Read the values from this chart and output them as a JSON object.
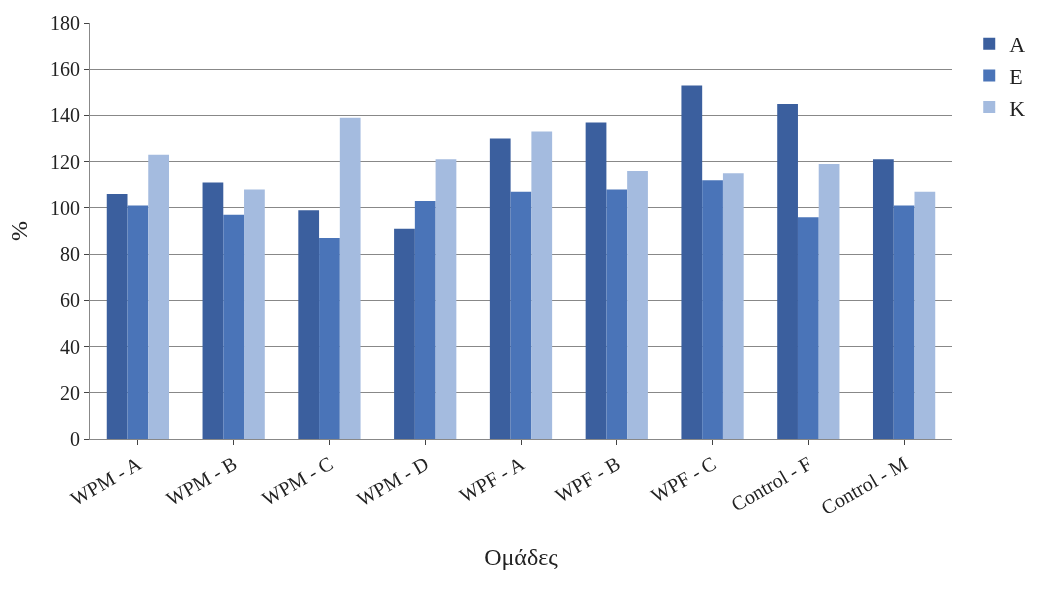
{
  "chart_data": {
    "type": "bar",
    "xlabel": "Ομάδες",
    "ylabel": "%",
    "categories": [
      "WPM - A",
      "WPM - B",
      "WPM - C",
      "WPM - D",
      "WPF - A",
      "WPF - B",
      "WPF - C",
      "Control - F",
      "Control - M"
    ],
    "series": [
      {
        "name": "A",
        "color": "#3b5f9e",
        "values": [
          106,
          111,
          99,
          91,
          130,
          137,
          153,
          145,
          121
        ]
      },
      {
        "name": "E",
        "color": "#4a74b8",
        "values": [
          101,
          97,
          87,
          103,
          107,
          108,
          112,
          96,
          101
        ]
      },
      {
        "name": "K",
        "color": "#a4bbdf",
        "values": [
          123,
          108,
          139,
          121,
          133,
          116,
          115,
          119,
          107
        ]
      }
    ],
    "ylim": [
      0,
      180
    ],
    "yticks": [
      0,
      20,
      40,
      60,
      80,
      100,
      120,
      140,
      160,
      180
    ],
    "grid": "y",
    "legend": "top right"
  }
}
